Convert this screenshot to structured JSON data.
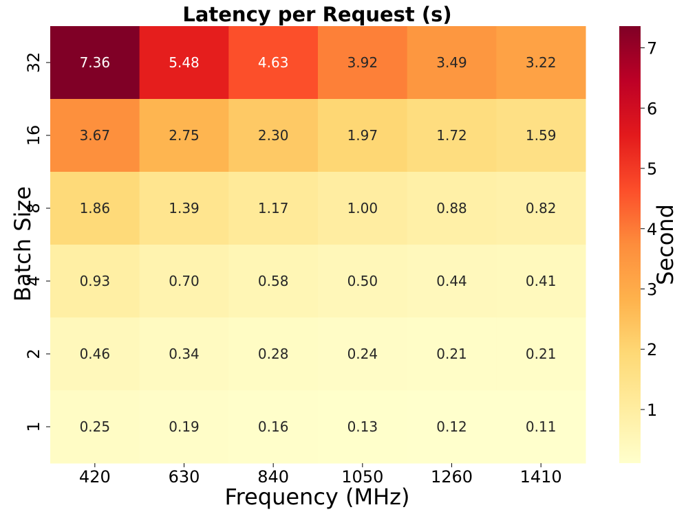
{
  "chart_data": {
    "type": "heatmap",
    "title": "Latency per Request (s)",
    "xlabel": "Frequency (MHz)",
    "ylabel": "Batch Size",
    "x_categories": [
      "420",
      "630",
      "840",
      "1050",
      "1260",
      "1410"
    ],
    "y_categories": [
      "32",
      "16",
      "8",
      "4",
      "2",
      "1"
    ],
    "values": [
      [
        7.36,
        5.48,
        4.63,
        3.92,
        3.49,
        3.22
      ],
      [
        3.67,
        2.75,
        2.3,
        1.97,
        1.72,
        1.59
      ],
      [
        1.86,
        1.39,
        1.17,
        1.0,
        0.88,
        0.82
      ],
      [
        0.93,
        0.7,
        0.58,
        0.5,
        0.44,
        0.41
      ],
      [
        0.46,
        0.34,
        0.28,
        0.24,
        0.21,
        0.21
      ],
      [
        0.25,
        0.19,
        0.16,
        0.13,
        0.12,
        0.11
      ]
    ],
    "value_labels": [
      [
        "7.36",
        "5.48",
        "4.63",
        "3.92",
        "3.49",
        "3.22"
      ],
      [
        "3.67",
        "2.75",
        "2.30",
        "1.97",
        "1.72",
        "1.59"
      ],
      [
        "1.86",
        "1.39",
        "1.17",
        "1.00",
        "0.88",
        "0.82"
      ],
      [
        "0.93",
        "0.70",
        "0.58",
        "0.50",
        "0.44",
        "0.41"
      ],
      [
        "0.46",
        "0.34",
        "0.28",
        "0.24",
        "0.21",
        "0.21"
      ],
      [
        "0.25",
        "0.19",
        "0.16",
        "0.13",
        "0.12",
        "0.11"
      ]
    ],
    "colormap": "YlOrRd",
    "color_range": [
      0.11,
      7.36
    ],
    "colorbar": {
      "label": "Second",
      "ticks": [
        "1",
        "2",
        "3",
        "4",
        "5",
        "6",
        "7"
      ]
    }
  }
}
